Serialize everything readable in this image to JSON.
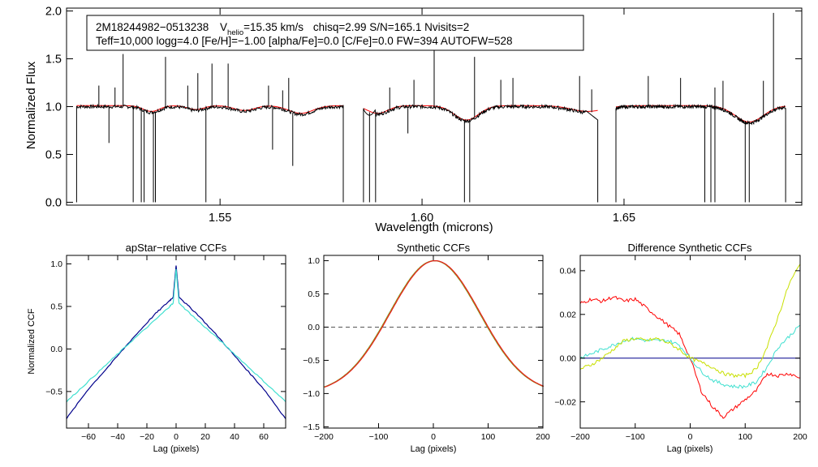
{
  "chart_data": [
    {
      "type": "line",
      "panel": "spectrum",
      "title": "",
      "xlabel": "Wavelength (microns)",
      "ylabel": "Normalized Flux",
      "xlim": [
        1.512,
        1.694
      ],
      "ylim": [
        -0.03,
        2.03
      ],
      "xticks": [
        1.55,
        1.6,
        1.65
      ],
      "xtick_labels": [
        "1.55",
        "1.60",
        "1.65"
      ],
      "yticks": [
        0.0,
        0.5,
        1.0,
        1.5,
        2.0
      ],
      "ytick_labels": [
        "0.0",
        "0.5",
        "1.0",
        "1.5",
        "2.0"
      ],
      "annotation": {
        "id": "2M18244982−0513238",
        "v_label": "V",
        "v_sub": "helio",
        "v_value": "=15.35 km/s",
        "stats": "chisq=2.99  S/N=165.1  Nvisits=2",
        "params": "Teff=10,000 logg=4.0 [Fe/H]=−1.00 [alpha/Fe]=0.0 [C/Fe]=0.0 FW=394 AUTOFW=528"
      },
      "chips": [
        [
          1.5145,
          1.5805
        ],
        [
          1.5855,
          1.6435
        ],
        [
          1.648,
          1.69
        ]
      ],
      "broad_lines": [
        {
          "center": 1.533,
          "depth": 0.06,
          "width": 0.002
        },
        {
          "center": 1.544,
          "depth": 0.04,
          "width": 0.002
        },
        {
          "center": 1.556,
          "depth": 0.05,
          "width": 0.0025
        },
        {
          "center": 1.57,
          "depth": 0.08,
          "width": 0.003
        },
        {
          "center": 1.589,
          "depth": 0.08,
          "width": 0.0025
        },
        {
          "center": 1.611,
          "depth": 0.15,
          "width": 0.003
        },
        {
          "center": 1.641,
          "depth": 0.06,
          "width": 0.004
        },
        {
          "center": 1.681,
          "depth": 0.17,
          "width": 0.0035
        }
      ],
      "emission_spikes": [
        {
          "x": 1.52,
          "y": 1.22
        },
        {
          "x": 1.524,
          "y": 1.2
        },
        {
          "x": 1.526,
          "y": 1.55
        },
        {
          "x": 1.5365,
          "y": 1.52
        },
        {
          "x": 1.542,
          "y": 1.22
        },
        {
          "x": 1.5445,
          "y": 1.35
        },
        {
          "x": 1.548,
          "y": 1.45
        },
        {
          "x": 1.552,
          "y": 1.45
        },
        {
          "x": 1.562,
          "y": 1.22
        },
        {
          "x": 1.5655,
          "y": 1.17
        },
        {
          "x": 1.567,
          "y": 1.3
        },
        {
          "x": 1.592,
          "y": 1.2
        },
        {
          "x": 1.598,
          "y": 1.28
        },
        {
          "x": 1.603,
          "y": 1.6
        },
        {
          "x": 1.613,
          "y": 1.52
        },
        {
          "x": 1.6195,
          "y": 1.28
        },
        {
          "x": 1.6225,
          "y": 1.3
        },
        {
          "x": 1.639,
          "y": 1.32
        },
        {
          "x": 1.642,
          "y": 1.18
        },
        {
          "x": 1.656,
          "y": 1.32
        },
        {
          "x": 1.664,
          "y": 1.3
        },
        {
          "x": 1.6725,
          "y": 1.2
        },
        {
          "x": 1.6745,
          "y": 1.27
        },
        {
          "x": 1.6845,
          "y": 1.27
        },
        {
          "x": 1.687,
          "y": 1.98
        }
      ],
      "absorption_spikes": [
        {
          "x": 1.5225,
          "y": 0.62
        },
        {
          "x": 1.5285,
          "y": 0.0
        },
        {
          "x": 1.5305,
          "y": 0.0
        },
        {
          "x": 1.5312,
          "y": 0.0
        },
        {
          "x": 1.5335,
          "y": 0.0
        },
        {
          "x": 1.534,
          "y": 0.0
        },
        {
          "x": 1.5465,
          "y": 0.0
        },
        {
          "x": 1.563,
          "y": 0.55
        },
        {
          "x": 1.568,
          "y": 0.38
        },
        {
          "x": 1.587,
          "y": 0.0
        },
        {
          "x": 1.5885,
          "y": 0.0
        },
        {
          "x": 1.5965,
          "y": 0.72
        },
        {
          "x": 1.6105,
          "y": 0.0
        },
        {
          "x": 1.6118,
          "y": 0.0
        },
        {
          "x": 1.67,
          "y": 0.0
        },
        {
          "x": 1.6715,
          "y": 0.0
        },
        {
          "x": 1.6725,
          "y": 0.0
        },
        {
          "x": 1.68,
          "y": 0.0
        },
        {
          "x": 1.681,
          "y": 0.0
        }
      ],
      "series": [
        {
          "name": "observed spectrum",
          "color": "#000000"
        },
        {
          "name": "model",
          "color": "#ff0000"
        }
      ]
    },
    {
      "type": "line",
      "panel": "apstar_ccf",
      "title": "apStar−relative CCFs",
      "xlabel": "Lag (pixels)",
      "ylabel": "Normalized CCF",
      "xlim": [
        -75,
        75
      ],
      "ylim": [
        -0.93,
        1.1
      ],
      "xticks": [
        -60,
        -40,
        -20,
        0,
        20,
        40,
        60
      ],
      "xtick_labels": [
        "−60",
        "−40",
        "−20",
        "0",
        "20",
        "40",
        "60"
      ],
      "yticks": [
        -0.5,
        0.0,
        0.5,
        1.0
      ],
      "ytick_labels": [
        "−0.5",
        "0.0",
        "0.5",
        "1.0"
      ],
      "series": [
        {
          "name": "visit 1",
          "color": "#00008b",
          "x": [
            -75,
            -60,
            -45,
            -30,
            -15,
            -5,
            -2,
            0,
            2,
            5,
            15,
            30,
            45,
            60,
            75
          ],
          "y": [
            -0.82,
            -0.47,
            -0.18,
            0.12,
            0.4,
            0.56,
            0.61,
            0.98,
            0.61,
            0.56,
            0.4,
            0.12,
            -0.18,
            -0.47,
            -0.82
          ]
        },
        {
          "name": "visit 2",
          "color": "#40e0d0",
          "x": [
            -75,
            -60,
            -45,
            -30,
            -15,
            -5,
            -2,
            0,
            2,
            5,
            15,
            30,
            45,
            60,
            75
          ],
          "y": [
            -0.62,
            -0.38,
            -0.14,
            0.1,
            0.33,
            0.49,
            0.54,
            0.94,
            0.54,
            0.49,
            0.33,
            0.1,
            -0.14,
            -0.38,
            -0.62
          ]
        }
      ]
    },
    {
      "type": "line",
      "panel": "synthetic_ccf",
      "title": "Synthetic CCFs",
      "xlabel": "Lag (pixels)",
      "ylabel": "",
      "xlim": [
        -200,
        200
      ],
      "ylim": [
        -1.52,
        1.08
      ],
      "xticks": [
        -200,
        -100,
        0,
        100,
        200
      ],
      "xtick_labels": [
        "−200",
        "−100",
        "0",
        "100",
        "200"
      ],
      "yticks": [
        -1.5,
        -1.0,
        -0.5,
        0.0,
        0.5,
        1.0
      ],
      "ytick_labels": [
        "−1.5",
        "−1.0",
        "−0.5",
        "0.0",
        "0.5",
        "1.0"
      ],
      "zero_line": 0.0,
      "profile": {
        "center": 2,
        "sigma": 82.2
      },
      "series": [
        {
          "name": "synthetic 1",
          "color": "#4b8b2b",
          "offset": 0
        },
        {
          "name": "synthetic 2",
          "color": "#d2a000",
          "offset": 1
        },
        {
          "name": "synthetic 3",
          "color": "#e02020",
          "offset": 2
        }
      ]
    },
    {
      "type": "line",
      "panel": "difference_ccf",
      "title": "Difference Synthetic CCFs",
      "xlabel": "Lag (pixels)",
      "ylabel": "",
      "xlim": [
        -200,
        200
      ],
      "ylim": [
        -0.032,
        0.047
      ],
      "xticks": [
        -200,
        -100,
        0,
        100,
        200
      ],
      "xtick_labels": [
        "−200",
        "−100",
        "0",
        "100",
        "200"
      ],
      "yticks": [
        -0.02,
        0.0,
        0.02,
        0.04
      ],
      "ytick_labels": [
        "−0.02",
        "0.00",
        "0.02",
        "0.04"
      ],
      "series": [
        {
          "name": "reference",
          "color": "#00008b",
          "x": [
            -200,
            200
          ],
          "y": [
            0.0,
            0.0
          ]
        },
        {
          "name": "red",
          "color": "#ff0000",
          "x": [
            -200,
            -180,
            -160,
            -140,
            -120,
            -100,
            -80,
            -60,
            -40,
            -20,
            0,
            20,
            40,
            60,
            80,
            100,
            120,
            140,
            160,
            180,
            200
          ],
          "y": [
            0.025,
            0.027,
            0.026,
            0.028,
            0.026,
            0.027,
            0.023,
            0.019,
            0.015,
            0.011,
            0.0,
            -0.015,
            -0.022,
            -0.027,
            -0.023,
            -0.019,
            -0.015,
            -0.007,
            -0.008,
            -0.007,
            -0.009
          ]
        },
        {
          "name": "cyan",
          "color": "#40e0d0",
          "x": [
            -200,
            -180,
            -160,
            -140,
            -120,
            -100,
            -80,
            -60,
            -40,
            -20,
            0,
            20,
            40,
            60,
            80,
            100,
            120,
            140,
            160,
            180,
            200
          ],
          "y": [
            0.0,
            0.002,
            0.004,
            0.006,
            0.008,
            0.009,
            0.008,
            0.008,
            0.008,
            0.006,
            0.0,
            -0.006,
            -0.01,
            -0.012,
            -0.013,
            -0.013,
            -0.011,
            -0.004,
            0.005,
            0.01,
            0.015
          ]
        },
        {
          "name": "yellow",
          "color": "#c8e000",
          "x": [
            -200,
            -180,
            -160,
            -140,
            -120,
            -100,
            -80,
            -60,
            -40,
            -20,
            0,
            20,
            40,
            60,
            80,
            100,
            120,
            140,
            160,
            180,
            200
          ],
          "y": [
            -0.005,
            -0.003,
            0.0,
            0.004,
            0.008,
            0.009,
            0.008,
            0.009,
            0.007,
            0.004,
            0.0,
            -0.002,
            -0.004,
            -0.007,
            -0.008,
            -0.008,
            -0.005,
            0.005,
            0.019,
            0.034,
            0.043
          ]
        }
      ]
    }
  ]
}
